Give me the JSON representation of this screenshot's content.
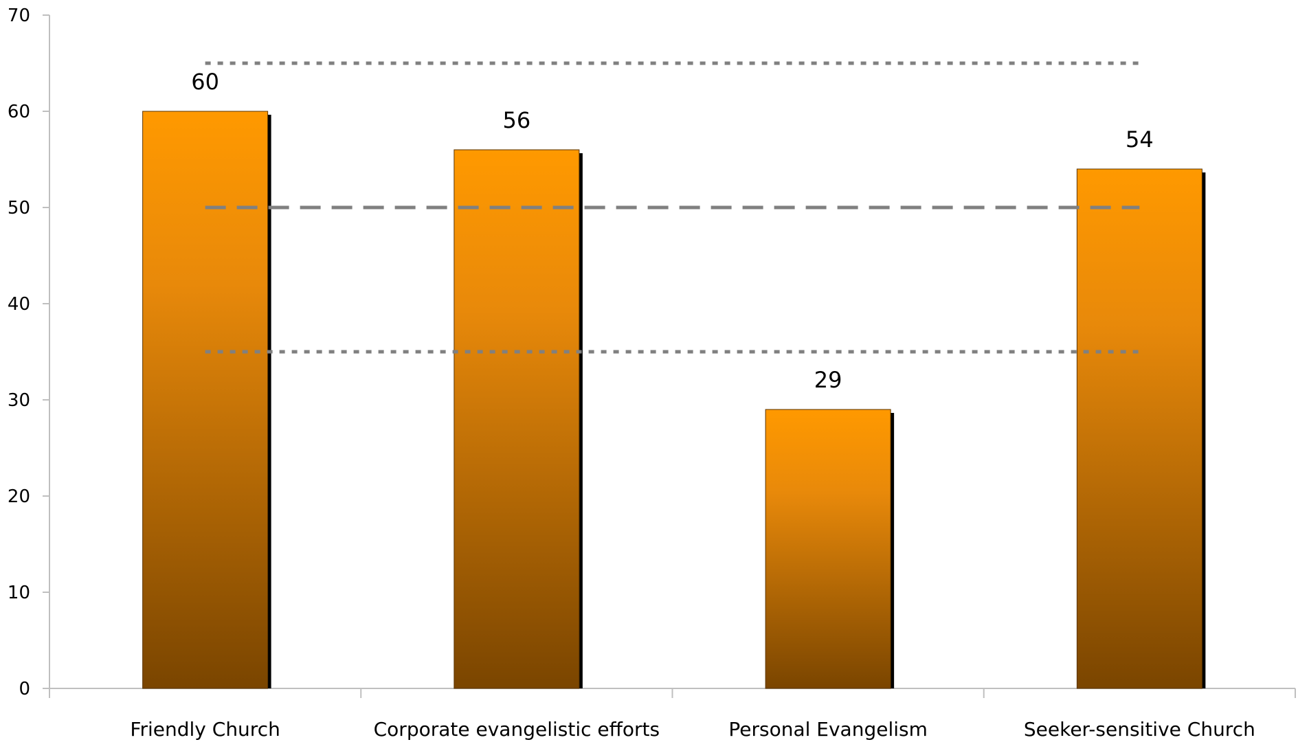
{
  "chart_data": {
    "type": "bar",
    "title": "",
    "xlabel": "",
    "ylabel": "",
    "categories": [
      "Friendly Church",
      "Corporate evangelistic efforts",
      "Personal Evangelism",
      "Seeker-sensitive Church"
    ],
    "values": [
      60,
      56,
      29,
      54
    ],
    "data_labels": [
      "60",
      "56",
      "29",
      "54"
    ],
    "ylim": [
      0,
      70
    ],
    "yticks": [
      0,
      10,
      20,
      30,
      40,
      50,
      60,
      70
    ],
    "reference_lines": [
      {
        "value": 65,
        "style": "dotted"
      },
      {
        "value": 50,
        "style": "dashed"
      },
      {
        "value": 35,
        "style": "dotted"
      }
    ],
    "grid": false,
    "legend": "none",
    "colors": {
      "bar_top": "#FF9900",
      "bar_bottom": "#7A4500",
      "bar_shadow": "#000000",
      "reference_line": "#808080",
      "axis": "#BFBFBF"
    }
  }
}
